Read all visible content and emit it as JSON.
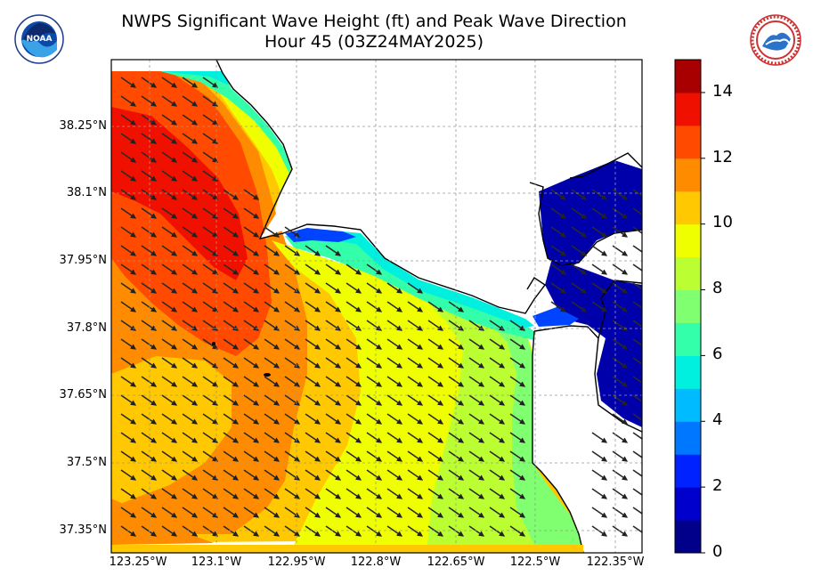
{
  "header": {
    "title_line1": "NWPS Significant Wave Height (ft) and Peak Wave Direction",
    "title_line2": "Hour 45 (03Z24MAY2025)"
  },
  "logos": {
    "left": {
      "name": "noaa-logo",
      "text": "NOAA"
    },
    "right": {
      "name": "nws-logo",
      "text": "NATIONAL WEATHER SERVICE"
    }
  },
  "axes": {
    "lat_labels": [
      "38.25°N",
      "38.1°N",
      "37.95°N",
      "37.8°N",
      "37.65°N",
      "37.5°N",
      "37.35°N"
    ],
    "lon_labels": [
      "123.25°W",
      "123.1°W",
      "122.95°W",
      "122.8°W",
      "122.65°W",
      "122.5°W",
      "122.35°W"
    ]
  },
  "colorbar": {
    "labels": [
      "0",
      "2",
      "4",
      "6",
      "8",
      "10",
      "12",
      "14"
    ],
    "bands": [
      "#00008b",
      "#0000cd",
      "#0022ff",
      "#0077ff",
      "#00bbff",
      "#00f0e0",
      "#33ffaa",
      "#80ff70",
      "#bbff33",
      "#f0ff00",
      "#ffc800",
      "#ff8c00",
      "#ff4a00",
      "#f01000",
      "#a80000"
    ]
  },
  "map_data": {
    "variable": "Significant Wave Height (ft)",
    "vector": "Peak Wave Direction",
    "range_ft": [
      0,
      15
    ],
    "predominant_direction": "from northwest"
  }
}
